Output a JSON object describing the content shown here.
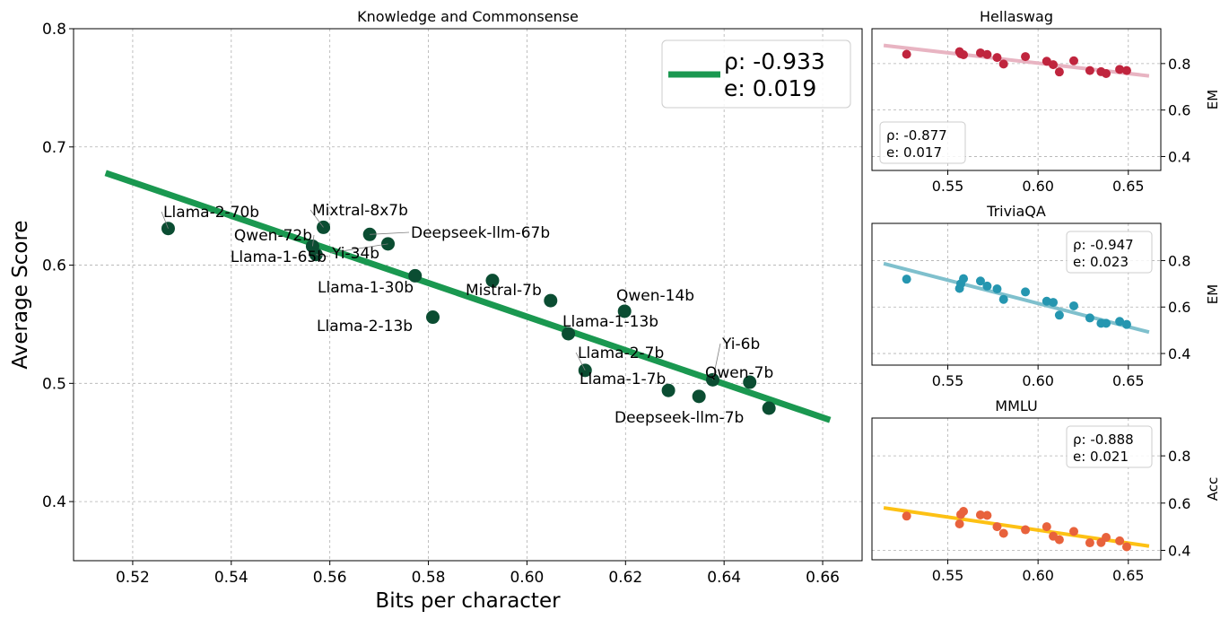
{
  "chart_data": [
    {
      "id": "main",
      "type": "scatter",
      "title": "Knowledge and Commonsense",
      "xlabel": "Bits per character",
      "ylabel": "Average Score",
      "xlim": [
        0.508,
        0.668
      ],
      "ylim": [
        0.35,
        0.8
      ],
      "xticks": [
        0.52,
        0.54,
        0.56,
        0.58,
        0.6,
        0.62,
        0.64,
        0.66
      ],
      "yticks": [
        0.4,
        0.5,
        0.6,
        0.7,
        0.8
      ],
      "xtick_labels": [
        "0.52",
        "0.54",
        "0.56",
        "0.58",
        "0.60",
        "0.62",
        "0.64",
        "0.66"
      ],
      "ytick_labels": [
        "0.4",
        "0.5",
        "0.6",
        "0.7",
        "0.8"
      ],
      "grid": true,
      "point_color": "#0b4d32",
      "line_color": "#1a9850",
      "fit_line": {
        "x": [
          0.5145,
          0.6615
        ],
        "y": [
          0.678,
          0.469
        ]
      },
      "legend": {
        "placement": "top-right",
        "rho_label": "ρ: -0.933",
        "e_label": "e: 0.019"
      },
      "points": [
        {
          "label": "Llama-2-70b",
          "x": 0.5272,
          "y": 0.631
        },
        {
          "label": "Mixtral-8x7b",
          "x": 0.5587,
          "y": 0.632
        },
        {
          "label": "Qwen-72b",
          "x": 0.5565,
          "y": 0.616
        },
        {
          "label": "Llama-1-65b",
          "x": 0.5572,
          "y": 0.609
        },
        {
          "label": "Deepseek-llm-67b",
          "x": 0.5681,
          "y": 0.626
        },
        {
          "label": "Yi-34b",
          "x": 0.5718,
          "y": 0.618
        },
        {
          "label": "Llama-1-30b",
          "x": 0.5773,
          "y": 0.591
        },
        {
          "label": "Llama-2-13b",
          "x": 0.5809,
          "y": 0.556
        },
        {
          "label": "Mistral-7b",
          "x": 0.593,
          "y": 0.587
        },
        {
          "label": "",
          "x": 0.6048,
          "y": 0.57
        },
        {
          "label": "Qwen-14b",
          "x": 0.6198,
          "y": 0.561
        },
        {
          "label": "Llama-1-13b",
          "x": 0.6084,
          "y": 0.542
        },
        {
          "label": "Llama-2-7b",
          "x": 0.6118,
          "y": 0.511
        },
        {
          "label": "Llama-1-7b",
          "x": 0.6287,
          "y": 0.494
        },
        {
          "label": "Deepseek-llm-7b",
          "x": 0.6349,
          "y": 0.489
        },
        {
          "label": "Yi-6b",
          "x": 0.6377,
          "y": 0.503
        },
        {
          "label": "Qwen-7b",
          "x": 0.6452,
          "y": 0.501
        },
        {
          "label": "",
          "x": 0.6491,
          "y": 0.479
        }
      ]
    },
    {
      "id": "hellaswag",
      "type": "scatter",
      "title": "Hellaswag",
      "ylabel": "EM",
      "xlim": [
        0.508,
        0.668
      ],
      "ylim": [
        0.34,
        0.95
      ],
      "xticks": [
        0.55,
        0.6,
        0.65
      ],
      "xtick_labels": [
        "0.55",
        "0.60",
        "0.65"
      ],
      "yticks": [
        0.4,
        0.6,
        0.8
      ],
      "ytick_labels": [
        "0.4",
        "0.6",
        "0.8"
      ],
      "grid": true,
      "point_color": "#c0253e",
      "line_color": "#e8b4c2",
      "fit_line": {
        "x": [
          0.5145,
          0.6615
        ],
        "y": [
          0.878,
          0.747
        ]
      },
      "legend": {
        "placement": "bottom-left",
        "rho_label": "ρ: -0.877",
        "e_label": "e: 0.017"
      },
      "x": [
        0.5272,
        0.5572,
        0.5587,
        0.5565,
        0.5681,
        0.5718,
        0.5773,
        0.5809,
        0.593,
        0.6048,
        0.6084,
        0.6118,
        0.6198,
        0.6287,
        0.6349,
        0.6377,
        0.6452,
        0.6491
      ],
      "y": [
        0.84,
        0.842,
        0.838,
        0.851,
        0.846,
        0.839,
        0.826,
        0.798,
        0.83,
        0.81,
        0.795,
        0.764,
        0.812,
        0.77,
        0.765,
        0.757,
        0.775,
        0.77
      ]
    },
    {
      "id": "triviaqa",
      "type": "scatter",
      "title": "TriviaQA",
      "ylabel": "EM",
      "xlim": [
        0.508,
        0.668
      ],
      "ylim": [
        0.35,
        0.96
      ],
      "xticks": [
        0.55,
        0.6,
        0.65
      ],
      "xtick_labels": [
        "0.55",
        "0.60",
        "0.65"
      ],
      "yticks": [
        0.4,
        0.6,
        0.8
      ],
      "ytick_labels": [
        "0.4",
        "0.6",
        "0.8"
      ],
      "grid": true,
      "point_color": "#2596b0",
      "line_color": "#7fc0cd",
      "fit_line": {
        "x": [
          0.5145,
          0.6615
        ],
        "y": [
          0.787,
          0.492
        ]
      },
      "legend": {
        "placement": "top-right",
        "rho_label": "ρ: -0.947",
        "e_label": "e: 0.023"
      },
      "x": [
        0.5272,
        0.5565,
        0.5572,
        0.5587,
        0.5681,
        0.5718,
        0.5773,
        0.5809,
        0.593,
        0.6048,
        0.6084,
        0.6118,
        0.6198,
        0.6287,
        0.6349,
        0.6377,
        0.6452,
        0.6491
      ],
      "y": [
        0.72,
        0.68,
        0.7,
        0.722,
        0.712,
        0.69,
        0.678,
        0.633,
        0.665,
        0.625,
        0.62,
        0.565,
        0.605,
        0.553,
        0.53,
        0.53,
        0.538,
        0.525
      ]
    },
    {
      "id": "mmlu",
      "type": "scatter",
      "title": "MMLU",
      "ylabel": "Acc",
      "xlim": [
        0.508,
        0.668
      ],
      "ylim": [
        0.36,
        0.96
      ],
      "xticks": [
        0.55,
        0.6,
        0.65
      ],
      "xtick_labels": [
        "0.55",
        "0.60",
        "0.65"
      ],
      "yticks": [
        0.4,
        0.6,
        0.8
      ],
      "ytick_labels": [
        "0.4",
        "0.6",
        "0.8"
      ],
      "grid": true,
      "point_color": "#e8623c",
      "line_color": "#fdc114",
      "fit_line": {
        "x": [
          0.5145,
          0.6615
        ],
        "y": [
          0.58,
          0.418
        ]
      },
      "legend": {
        "placement": "top-right",
        "rho_label": "ρ: -0.888",
        "e_label": "e: 0.021"
      },
      "x": [
        0.5272,
        0.5565,
        0.5572,
        0.5587,
        0.5681,
        0.5718,
        0.5773,
        0.5809,
        0.593,
        0.6048,
        0.6084,
        0.6118,
        0.6198,
        0.6287,
        0.6349,
        0.6377,
        0.6452,
        0.6491
      ],
      "y": [
        0.545,
        0.512,
        0.552,
        0.565,
        0.55,
        0.548,
        0.5,
        0.472,
        0.487,
        0.5,
        0.46,
        0.445,
        0.48,
        0.432,
        0.433,
        0.455,
        0.44,
        0.415
      ]
    }
  ]
}
